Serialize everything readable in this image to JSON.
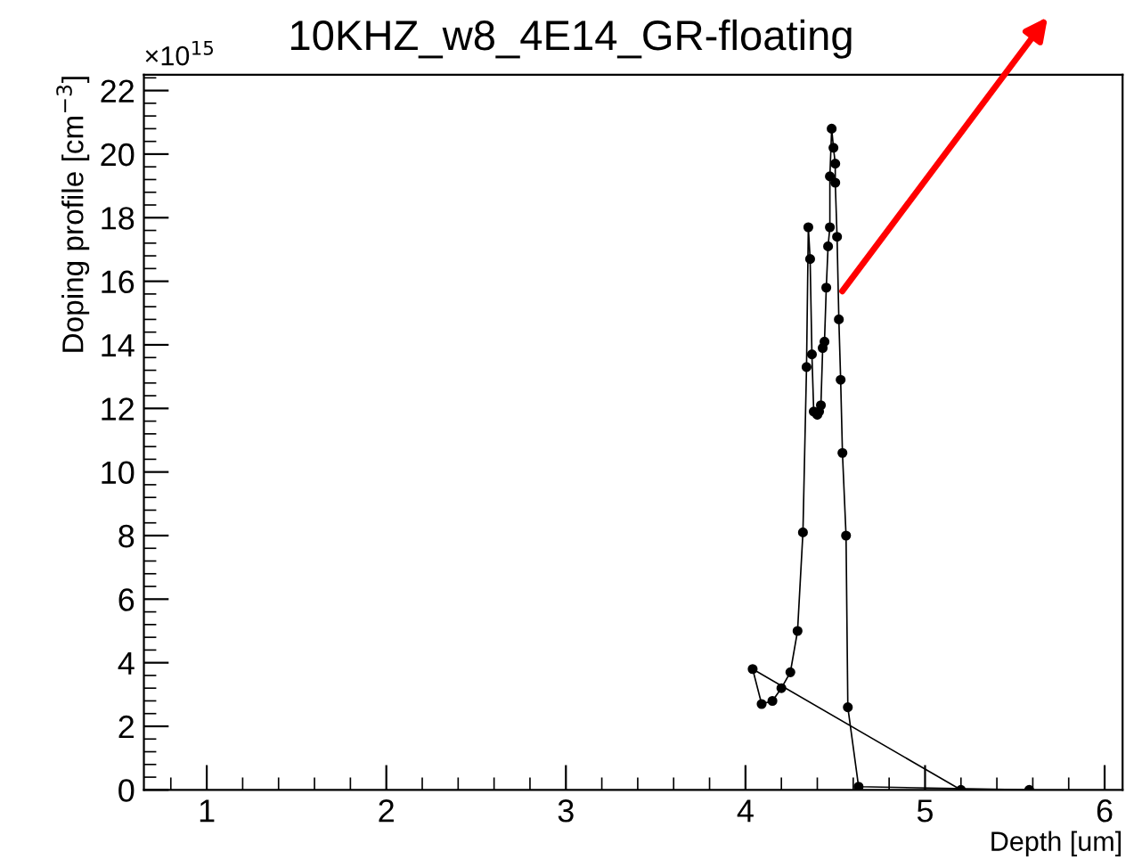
{
  "chart_data": {
    "type": "line",
    "title": "10KHZ_w8_4E14_GR-floating",
    "xlabel": "Depth [um]",
    "ylabel": "Doping profile [cm$^{−3}$]",
    "annotations": [
      "×10$^{15}$"
    ],
    "series": [
      {
        "color": "#000000",
        "x": [
          5.2,
          4.04,
          4.09,
          4.15,
          4.2,
          4.25,
          4.29,
          4.32,
          4.34,
          4.35,
          4.36,
          4.37,
          4.38,
          4.4,
          4.41,
          4.42,
          4.43,
          4.44,
          4.45,
          4.46,
          4.47,
          4.47,
          4.48,
          4.49,
          4.5,
          4.5,
          4.51,
          4.52,
          4.53,
          4.54,
          4.56,
          4.57,
          4.63,
          5.58
        ],
        "values": [
          0.0,
          3.8,
          2.7,
          2.8,
          3.2,
          3.7,
          5.0,
          8.1,
          13.3,
          17.7,
          16.7,
          13.7,
          11.9,
          11.8,
          11.9,
          12.1,
          13.9,
          14.1,
          15.8,
          17.1,
          17.7,
          19.3,
          20.8,
          20.2,
          19.7,
          19.1,
          17.4,
          14.8,
          12.9,
          10.6,
          8.0,
          2.6,
          0.1,
          0.0
        ]
      }
    ],
    "xlim": [
      0.65,
      6.1
    ],
    "ylim": [
      0,
      22.5
    ],
    "xticks": [
      1,
      2,
      3,
      4,
      5,
      6
    ],
    "yticks": [
      0,
      2,
      4,
      6,
      8,
      10,
      12,
      14,
      16,
      18,
      20,
      22
    ],
    "marker": "circle",
    "line_style": "solid",
    "grid": false,
    "legend": false
  }
}
